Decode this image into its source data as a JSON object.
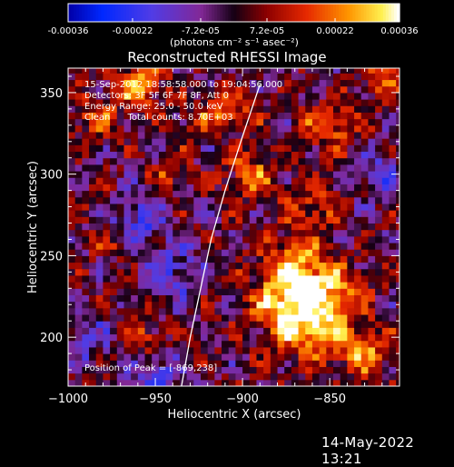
{
  "chart_data": {
    "type": "heatmap",
    "title": "Reconstructed RHESSI Image",
    "xlabel": "Heliocentric X (arcsec)",
    "ylabel": "Heliocentric Y (arcsec)",
    "xlim": [
      -1000,
      -810
    ],
    "ylim": [
      170,
      365
    ],
    "x_ticks": [
      -1000,
      -950,
      -900,
      -850
    ],
    "y_ticks": [
      200,
      250,
      300,
      350
    ],
    "x_tick_labels": [
      "−1000",
      "−950",
      "−900",
      "−850"
    ],
    "y_tick_labels": [
      "200",
      "250",
      "300",
      "350"
    ],
    "colorbar": {
      "ticks": [
        -0.00036,
        -0.00022,
        -7.2e-05,
        7.2e-05,
        0.00022,
        0.00036
      ],
      "tick_labels": [
        "-0.00036",
        "-0.00022",
        "-7.2e-05",
        "7.2e-05",
        "0.00022",
        "0.00036"
      ],
      "unit_label": "(photons cm⁻² s⁻¹ asec⁻²)",
      "range": [
        -0.00036,
        0.00036
      ]
    },
    "annotations": [
      "15-Sep-2012 18:58:58.000 to 19:04:56.000",
      "Detectors: 3F 5F 6F 7F 8F, Att 0",
      "Energy Range: 25.0 - 50.0 keV",
      "Clean      Total counts: 8.70E+03"
    ],
    "peak_label": "Position of Peak = [-869,238]",
    "limb_points": [
      [
        -935,
        170
      ],
      [
        -930,
        200
      ],
      [
        -924,
        230
      ],
      [
        -918,
        260
      ],
      [
        -910,
        290
      ],
      [
        -901,
        320
      ],
      [
        -890,
        355
      ]
    ],
    "hotspots": [
      {
        "x": -869,
        "y": 238,
        "amp": 1.0,
        "s": 14
      },
      {
        "x": -860,
        "y": 205,
        "amp": 0.75,
        "s": 13
      },
      {
        "x": -880,
        "y": 215,
        "amp": 0.6,
        "s": 11
      },
      {
        "x": -845,
        "y": 225,
        "amp": 0.55,
        "s": 12
      },
      {
        "x": -960,
        "y": 355,
        "amp": 0.7,
        "s": 10
      },
      {
        "x": -985,
        "y": 335,
        "amp": 0.45,
        "s": 9
      },
      {
        "x": -895,
        "y": 300,
        "amp": 0.55,
        "s": 10
      },
      {
        "x": -905,
        "y": 340,
        "amp": 0.5,
        "s": 9
      },
      {
        "x": -850,
        "y": 330,
        "amp": 0.5,
        "s": 11
      },
      {
        "x": -860,
        "y": 280,
        "amp": 0.45,
        "s": 10
      },
      {
        "x": -940,
        "y": 300,
        "amp": 0.4,
        "s": 8
      },
      {
        "x": -955,
        "y": 200,
        "amp": 0.4,
        "s": 9
      },
      {
        "x": -830,
        "y": 190,
        "amp": 0.6,
        "s": 10
      },
      {
        "x": -925,
        "y": 335,
        "amp": 0.35,
        "s": 8
      },
      {
        "x": -975,
        "y": 260,
        "amp": 0.35,
        "s": 8
      },
      {
        "x": -820,
        "y": 360,
        "amp": 0.55,
        "s": 9
      }
    ],
    "coldspots": [
      {
        "x": -960,
        "y": 270,
        "amp": -0.5,
        "s": 12
      },
      {
        "x": -940,
        "y": 240,
        "amp": -0.4,
        "s": 12
      },
      {
        "x": -820,
        "y": 300,
        "amp": -0.4,
        "s": 10
      },
      {
        "x": -990,
        "y": 200,
        "amp": -0.35,
        "s": 10
      },
      {
        "x": -950,
        "y": 180,
        "amp": -0.5,
        "s": 10
      }
    ]
  },
  "footer": {
    "date_stamp": "14-May-2022 13:21"
  },
  "colors": {
    "axis": "#ffffff",
    "limb": "#ffffff",
    "background": "#000000"
  }
}
